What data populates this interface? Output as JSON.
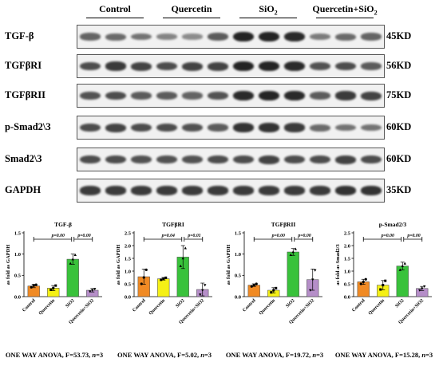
{
  "blot": {
    "groups": [
      {
        "label": "Control"
      },
      {
        "label": "Quercetin"
      },
      {
        "label_main": "SiO",
        "label_sub": "2"
      },
      {
        "label_main": "Quercetin+SiO",
        "label_sub": "2"
      }
    ],
    "rows": [
      {
        "name": "TGF-β",
        "kd": "45KD",
        "intensities": [
          0.55,
          0.5,
          0.45,
          0.35,
          0.3,
          0.6,
          0.95,
          0.95,
          0.9,
          0.4,
          0.5,
          0.55
        ]
      },
      {
        "name": "TGFβRI",
        "kd": "56KD",
        "intensities": [
          0.7,
          0.8,
          0.75,
          0.7,
          0.75,
          0.75,
          0.95,
          0.95,
          0.9,
          0.65,
          0.7,
          0.6
        ]
      },
      {
        "name": "TGFβRII",
        "kd": "75KD",
        "intensities": [
          0.65,
          0.7,
          0.6,
          0.6,
          0.55,
          0.65,
          0.9,
          0.95,
          0.9,
          0.6,
          0.8,
          0.75
        ]
      },
      {
        "name": "p-Smad2\\3",
        "kd": "60KD",
        "intensities": [
          0.7,
          0.75,
          0.7,
          0.7,
          0.65,
          0.6,
          0.85,
          0.85,
          0.8,
          0.5,
          0.45,
          0.45
        ]
      },
      {
        "name": "Smad2\\3",
        "kd": "60KD",
        "intensities": [
          0.7,
          0.7,
          0.65,
          0.65,
          0.65,
          0.7,
          0.7,
          0.75,
          0.7,
          0.7,
          0.75,
          0.7
        ]
      },
      {
        "name": "GAPDH",
        "kd": "35KD",
        "intensities": [
          0.8,
          0.8,
          0.8,
          0.8,
          0.8,
          0.8,
          0.8,
          0.8,
          0.8,
          0.8,
          0.85,
          0.85
        ]
      }
    ]
  },
  "colors": {
    "control": "#f08a24",
    "quercetin": "#f5f015",
    "sio2": "#39c23b",
    "combo": "#b58ec8"
  },
  "chart_data": [
    {
      "type": "bar",
      "title": "TGF-β",
      "ylabel": "as fold as GAPDH",
      "categories": [
        "Control",
        "Quercetin",
        "SiO2",
        "Quercetin+SiO2"
      ],
      "values": [
        0.25,
        0.2,
        0.88,
        0.15
      ],
      "errors": [
        0.04,
        0.06,
        0.12,
        0.04
      ],
      "points": [
        [
          0.22,
          0.26,
          0.28
        ],
        [
          0.16,
          0.2,
          0.26
        ],
        [
          0.78,
          0.88,
          0.98
        ],
        [
          0.12,
          0.15,
          0.18
        ]
      ],
      "ylim": [
        0,
        1.5
      ],
      "yticks": [
        "0.0",
        "0.5",
        "1.0",
        "1.5"
      ],
      "tick_values": [
        0,
        0.5,
        1.0,
        1.5
      ],
      "significance": [
        {
          "from": 0,
          "to": 2,
          "label": "p=0.00"
        },
        {
          "from": 2,
          "to": 3,
          "label": "p=0.00"
        }
      ],
      "anova": {
        "prefix": "ONE WAY ANOVA, F=53.73, ",
        "n": "n",
        "suffix": "=3"
      }
    },
    {
      "type": "bar",
      "title": "TGFβRI",
      "ylabel": "as fold as GAPDH",
      "categories": [
        "Control",
        "Quercetin",
        "SiO2",
        "Quercetin+SiO2"
      ],
      "values": [
        0.78,
        0.7,
        1.55,
        0.28
      ],
      "errors": [
        0.3,
        0.05,
        0.45,
        0.25
      ],
      "points": [
        [
          0.5,
          0.75,
          1.05
        ],
        [
          0.66,
          0.7,
          0.74
        ],
        [
          1.2,
          1.5,
          1.9
        ],
        [
          0.08,
          0.25,
          0.45
        ]
      ],
      "ylim": [
        0,
        2.5
      ],
      "yticks": [
        "0.0",
        "0.5",
        "1.0",
        "1.5",
        "2.0",
        "2.5"
      ],
      "tick_values": [
        0,
        0.5,
        1.0,
        1.5,
        2.0,
        2.5
      ],
      "significance": [
        {
          "from": 0,
          "to": 2,
          "label": "p=0.04"
        },
        {
          "from": 2,
          "to": 3,
          "label": "p=0.01"
        }
      ],
      "anova": {
        "prefix": "ONE WAY ANOVA, F=5.02, ",
        "n": "n",
        "suffix": "=3"
      }
    },
    {
      "type": "bar",
      "title": "TGFβRII",
      "ylabel": "as fold as GAPDH",
      "categories": [
        "Control",
        "Quercetin",
        "SiO2",
        "Quercetin+SiO2"
      ],
      "values": [
        0.27,
        0.15,
        1.05,
        0.4
      ],
      "errors": [
        0.03,
        0.06,
        0.08,
        0.25
      ],
      "points": [
        [
          0.24,
          0.27,
          0.3
        ],
        [
          0.1,
          0.15,
          0.2
        ],
        [
          0.98,
          1.05,
          1.12
        ],
        [
          0.15,
          0.4,
          0.62
        ]
      ],
      "ylim": [
        0,
        1.5
      ],
      "yticks": [
        "0.0",
        "0.5",
        "1.0",
        "1.5"
      ],
      "tick_values": [
        0,
        0.5,
        1.0,
        1.5
      ],
      "significance": [
        {
          "from": 0,
          "to": 2,
          "label": "p=0.00"
        },
        {
          "from": 2,
          "to": 3,
          "label": "p=0.00"
        }
      ],
      "anova": {
        "prefix": "ONE WAY ANOVA, F=19.72, ",
        "n": "n",
        "suffix": "=3"
      }
    },
    {
      "type": "bar",
      "title": "p-Smad2/3",
      "ylabel": "as fold as Smad2/3",
      "categories": [
        "Control",
        "Quercetin",
        "SiO2",
        "Quercetin+SiO2"
      ],
      "values": [
        0.58,
        0.45,
        1.2,
        0.32
      ],
      "errors": [
        0.1,
        0.18,
        0.15,
        0.08
      ],
      "points": [
        [
          0.5,
          0.58,
          0.68
        ],
        [
          0.28,
          0.45,
          0.62
        ],
        [
          1.05,
          1.2,
          1.3
        ],
        [
          0.25,
          0.32,
          0.4
        ]
      ],
      "ylim": [
        0,
        2.5
      ],
      "yticks": [
        "0.0",
        "0.5",
        "1.0",
        "1.5",
        "2.0",
        "2.5"
      ],
      "tick_values": [
        0,
        0.5,
        1.0,
        1.5,
        2.0,
        2.5
      ],
      "significance": [
        {
          "from": 0,
          "to": 2,
          "label": "p=0.00"
        },
        {
          "from": 2,
          "to": 3,
          "label": "p=0.00"
        }
      ],
      "anova": {
        "prefix": "ONE WAY ANOVA, F=15.28, ",
        "n": "n",
        "suffix": "=3"
      }
    }
  ]
}
